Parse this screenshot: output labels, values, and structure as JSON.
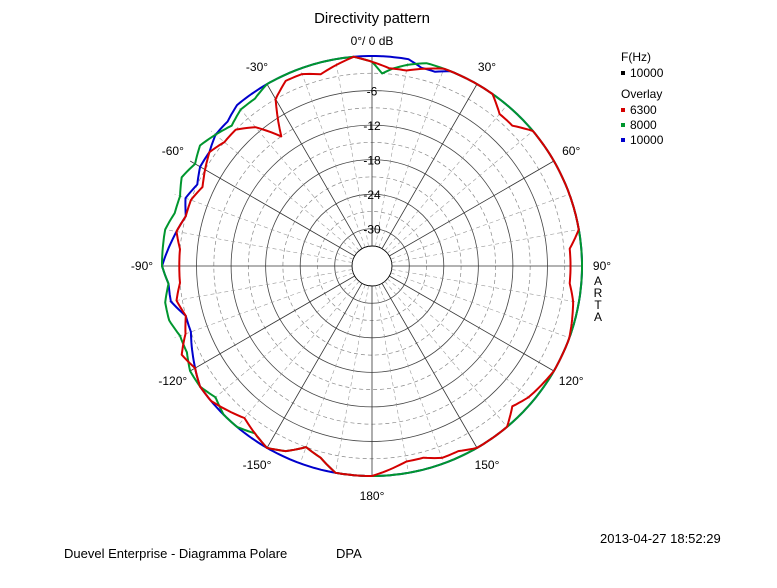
{
  "chart_data": {
    "type": "polar",
    "title": "Directivity pattern",
    "radial_unit_label": "0°/ 0 dB",
    "radial_ticks": [
      "-6",
      "-12",
      "-18",
      "-24",
      "-30"
    ],
    "radial_range_db": [
      -33,
      0
    ],
    "angle_ticks": [
      "30°",
      "60°",
      "90°",
      "120°",
      "150°",
      "180°",
      "-150°",
      "-120°",
      "-90°",
      "-60°",
      "-30°"
    ],
    "angle_tick_values": [
      30,
      60,
      90,
      120,
      150,
      180,
      -150,
      -120,
      -90,
      -60,
      -30
    ],
    "grid": true,
    "side_label": [
      "A",
      "R",
      "T",
      "A"
    ],
    "legend": {
      "header": "F(Hz)",
      "main_series": "10000",
      "overlay_header": "Overlay",
      "overlay_series": [
        "6300",
        "8000",
        "10000"
      ]
    },
    "series": [
      {
        "name": "6300",
        "color": "#d40000",
        "points": [
          [
            -180,
            0
          ],
          [
            -170,
            0
          ],
          [
            -165,
            -2
          ],
          [
            -160,
            -3
          ],
          [
            -155,
            -1
          ],
          [
            -150,
            0
          ],
          [
            -145,
            -1
          ],
          [
            -140,
            -2
          ],
          [
            -135,
            -1
          ],
          [
            -130,
            0
          ],
          [
            -125,
            0
          ],
          [
            -120,
            -1
          ],
          [
            -115,
            0
          ],
          [
            -110,
            -2
          ],
          [
            -105,
            -3
          ],
          [
            -100,
            -2
          ],
          [
            -95,
            -3
          ],
          [
            -90,
            -3
          ],
          [
            -85,
            -3
          ],
          [
            -80,
            -2
          ],
          [
            -75,
            -3
          ],
          [
            -70,
            -3
          ],
          [
            -65,
            -4
          ],
          [
            -60,
            -3
          ],
          [
            -55,
            -2
          ],
          [
            -50,
            -3
          ],
          [
            -45,
            -3
          ],
          [
            -40,
            -5
          ],
          [
            -35,
            -9
          ],
          [
            -30,
            -3
          ],
          [
            -25,
            -1
          ],
          [
            -20,
            -1
          ],
          [
            -15,
            -2
          ],
          [
            -10,
            -1
          ],
          [
            -5,
            0
          ],
          [
            0,
            -1
          ],
          [
            5,
            -2
          ],
          [
            10,
            -2
          ],
          [
            15,
            -1
          ],
          [
            20,
            0
          ],
          [
            25,
            0
          ],
          [
            30,
            0
          ],
          [
            35,
            0
          ],
          [
            40,
            -2
          ],
          [
            45,
            -2
          ],
          [
            50,
            0
          ],
          [
            60,
            0
          ],
          [
            70,
            0
          ],
          [
            80,
            0
          ],
          [
            85,
            -2
          ],
          [
            90,
            -2
          ],
          [
            95,
            -2
          ],
          [
            100,
            -1
          ],
          [
            110,
            0
          ],
          [
            120,
            0
          ],
          [
            130,
            -1
          ],
          [
            135,
            -2
          ],
          [
            140,
            0
          ],
          [
            150,
            0
          ],
          [
            155,
            -1
          ],
          [
            160,
            -1
          ],
          [
            165,
            -2
          ],
          [
            170,
            -2
          ],
          [
            175,
            -1
          ],
          [
            180,
            0
          ]
        ]
      },
      {
        "name": "8000",
        "color": "#00962e",
        "points": [
          [
            -180,
            0
          ],
          [
            -170,
            0
          ],
          [
            -165,
            -2
          ],
          [
            -160,
            -3
          ],
          [
            -155,
            -1
          ],
          [
            -150,
            0
          ],
          [
            -145,
            -1
          ],
          [
            -140,
            0
          ],
          [
            -135,
            0
          ],
          [
            -130,
            -1
          ],
          [
            -125,
            0
          ],
          [
            -120,
            0
          ],
          [
            -115,
            -1
          ],
          [
            -110,
            -1
          ],
          [
            -105,
            0
          ],
          [
            -100,
            0
          ],
          [
            -95,
            -1
          ],
          [
            -90,
            0
          ],
          [
            -85,
            0
          ],
          [
            -80,
            0
          ],
          [
            -75,
            -1
          ],
          [
            -70,
            -1
          ],
          [
            -65,
            0
          ],
          [
            -60,
            -1
          ],
          [
            -55,
            0
          ],
          [
            -50,
            -1
          ],
          [
            -45,
            -2
          ],
          [
            -40,
            -1
          ],
          [
            -35,
            -1
          ],
          [
            -30,
            0
          ],
          [
            -25,
            0
          ],
          [
            -15,
            0
          ],
          [
            -5,
            0
          ],
          [
            0,
            -1
          ],
          [
            3,
            -3
          ],
          [
            6,
            -2
          ],
          [
            10,
            -1
          ],
          [
            15,
            0
          ],
          [
            180,
            0
          ]
        ]
      },
      {
        "name": "10000",
        "color": "#0000cc",
        "points": [
          [
            -180,
            0
          ],
          [
            -160,
            0
          ],
          [
            -150,
            0
          ],
          [
            -140,
            0
          ],
          [
            -130,
            0
          ],
          [
            -125,
            0
          ],
          [
            -120,
            -1
          ],
          [
            -115,
            -2
          ],
          [
            -110,
            -3
          ],
          [
            -105,
            -3
          ],
          [
            -100,
            -1
          ],
          [
            -95,
            -1
          ],
          [
            -90,
            0
          ],
          [
            -85,
            -1
          ],
          [
            -80,
            -2
          ],
          [
            -75,
            -3
          ],
          [
            -70,
            -2
          ],
          [
            -65,
            -3
          ],
          [
            -60,
            -2
          ],
          [
            -55,
            -2
          ],
          [
            -50,
            -1
          ],
          [
            -45,
            -1
          ],
          [
            -40,
            0
          ],
          [
            -35,
            0
          ],
          [
            -30,
            0
          ],
          [
            -20,
            0
          ],
          [
            -10,
            0
          ],
          [
            0,
            0
          ],
          [
            10,
            0
          ],
          [
            14,
            -1
          ],
          [
            18,
            -1
          ],
          [
            22,
            0
          ],
          [
            30,
            0
          ],
          [
            60,
            0
          ],
          [
            90,
            0
          ],
          [
            120,
            0
          ],
          [
            150,
            0
          ],
          [
            180,
            0
          ]
        ]
      }
    ]
  },
  "footer": {
    "timestamp": "2013-04-27  18:52:29",
    "caption": "Duevel Enterprise - Diagramma Polare",
    "tag": "DPA"
  }
}
